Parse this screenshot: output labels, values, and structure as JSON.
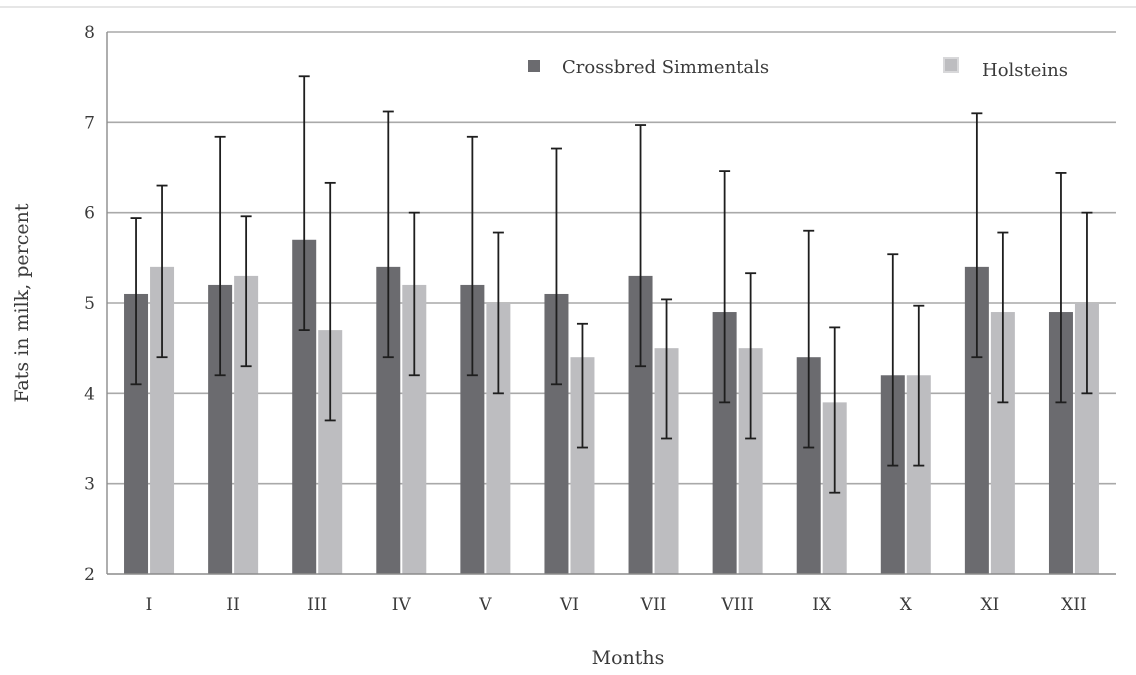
{
  "chart_data": {
    "type": "bar",
    "title": "",
    "xlabel": "Months",
    "ylabel": "Fats in milk, percent",
    "ylim": [
      2,
      8
    ],
    "yticks": [
      2,
      3,
      4,
      5,
      6,
      7,
      8
    ],
    "grid": true,
    "legend_position": "top-right",
    "categories": [
      "I",
      "II",
      "III",
      "IV",
      "V",
      "VI",
      "VII",
      "VIII",
      "IX",
      "X",
      "XI",
      "XII"
    ],
    "series": [
      {
        "name": "Crossbred Simmentals",
        "color": "#6b6b6f",
        "values": [
          5.1,
          5.2,
          5.7,
          5.4,
          5.2,
          5.1,
          5.3,
          4.9,
          4.4,
          4.2,
          5.4,
          4.9
        ],
        "error_low": [
          4.1,
          4.2,
          4.7,
          4.4,
          4.2,
          4.1,
          4.3,
          3.9,
          3.4,
          3.2,
          4.4,
          3.9
        ],
        "error_high": [
          5.94,
          6.84,
          7.51,
          7.12,
          6.84,
          6.71,
          6.97,
          6.46,
          5.8,
          5.54,
          7.1,
          6.44
        ]
      },
      {
        "name": "Holsteins",
        "color": "#bdbdc0",
        "values": [
          5.4,
          5.3,
          4.7,
          5.2,
          5.0,
          4.4,
          4.5,
          4.5,
          3.9,
          4.2,
          4.9,
          5.0
        ],
        "error_low": [
          4.4,
          4.3,
          3.7,
          4.2,
          4.0,
          3.4,
          3.5,
          3.5,
          2.9,
          3.2,
          3.9,
          4.0
        ],
        "error_high": [
          6.3,
          5.96,
          6.33,
          6.0,
          5.78,
          4.77,
          5.04,
          5.33,
          4.73,
          4.97,
          5.78,
          6.0
        ]
      }
    ]
  },
  "colors": {
    "grid": "#a9a9a9",
    "axis": "#8c8c8c",
    "error_bar": "#1e1e1e",
    "text": "#3a3a3a"
  }
}
